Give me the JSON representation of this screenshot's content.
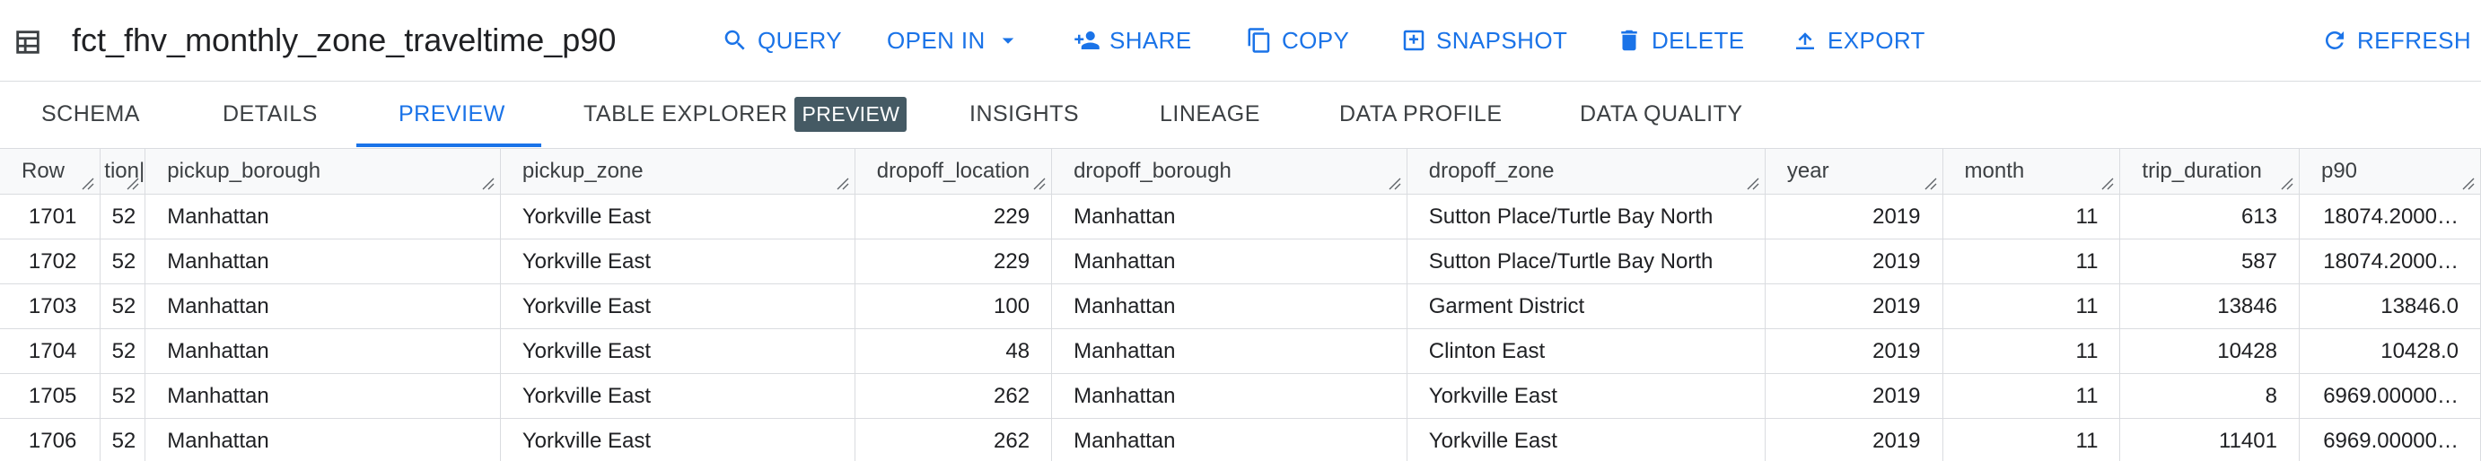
{
  "header": {
    "title": "fct_fhv_monthly_zone_traveltime_p90",
    "buttons": {
      "query": "QUERY",
      "open_in": "OPEN IN",
      "share": "SHARE",
      "copy": "COPY",
      "snapshot": "SNAPSHOT",
      "delete": "DELETE",
      "export": "EXPORT",
      "refresh": "REFRESH"
    }
  },
  "tabs": {
    "schema": "SCHEMA",
    "details": "DETAILS",
    "preview": "PREVIEW",
    "table_explorer": "TABLE EXPLORER",
    "table_explorer_badge": "PREVIEW",
    "insights": "INSIGHTS",
    "lineage": "LINEAGE",
    "data_profile": "DATA PROFILE",
    "data_quality": "DATA QUALITY",
    "active": "PREVIEW"
  },
  "table": {
    "columns": [
      "Row",
      "tion|",
      "pickup_borough",
      "pickup_zone",
      "dropoff_location",
      "dropoff_borough",
      "dropoff_zone",
      "year",
      "month",
      "trip_duration",
      "p90"
    ],
    "rows": [
      [
        "1701",
        "52",
        "Manhattan",
        "Yorkville East",
        "229",
        "Manhattan",
        "Sutton Place/Turtle Bay North",
        "2019",
        "11",
        "613",
        "18074.2000…"
      ],
      [
        "1702",
        "52",
        "Manhattan",
        "Yorkville East",
        "229",
        "Manhattan",
        "Sutton Place/Turtle Bay North",
        "2019",
        "11",
        "587",
        "18074.2000…"
      ],
      [
        "1703",
        "52",
        "Manhattan",
        "Yorkville East",
        "100",
        "Manhattan",
        "Garment District",
        "2019",
        "11",
        "13846",
        "13846.0"
      ],
      [
        "1704",
        "52",
        "Manhattan",
        "Yorkville East",
        "48",
        "Manhattan",
        "Clinton East",
        "2019",
        "11",
        "10428",
        "10428.0"
      ],
      [
        "1705",
        "52",
        "Manhattan",
        "Yorkville East",
        "262",
        "Manhattan",
        "Yorkville East",
        "2019",
        "11",
        "8",
        "6969.00000…"
      ],
      [
        "1706",
        "52",
        "Manhattan",
        "Yorkville East",
        "262",
        "Manhattan",
        "Yorkville East",
        "2019",
        "11",
        "11401",
        "6969.00000…"
      ]
    ]
  }
}
